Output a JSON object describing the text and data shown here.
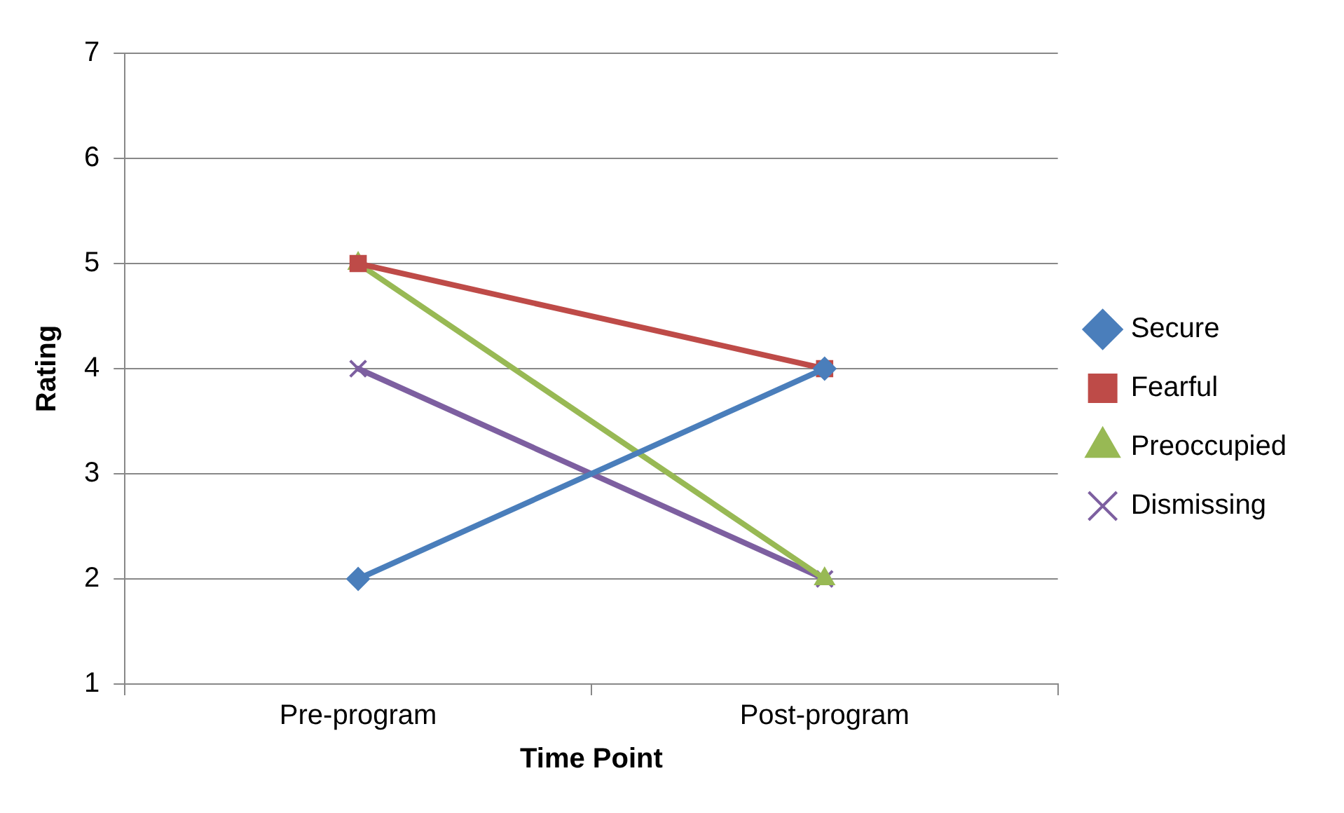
{
  "chart_data": {
    "type": "line",
    "xlabel": "Time Point",
    "ylabel": "Rating",
    "categories": [
      "Pre-program",
      "Post-program"
    ],
    "series": [
      {
        "name": "Secure",
        "color": "#4a7ebb",
        "marker": "diamond",
        "values": [
          2,
          4
        ]
      },
      {
        "name": "Fearful",
        "color": "#be4b48",
        "marker": "square",
        "values": [
          5,
          4
        ]
      },
      {
        "name": "Preoccupied",
        "color": "#98b954",
        "marker": "triangle",
        "values": [
          5,
          2
        ]
      },
      {
        "name": "Dismissing",
        "color": "#7d5fa0",
        "marker": "cross",
        "values": [
          4,
          2
        ]
      }
    ],
    "ylim": [
      1,
      7
    ],
    "yticks": [
      1,
      2,
      3,
      4,
      5,
      6,
      7
    ],
    "grid": "y",
    "legend": "right"
  }
}
